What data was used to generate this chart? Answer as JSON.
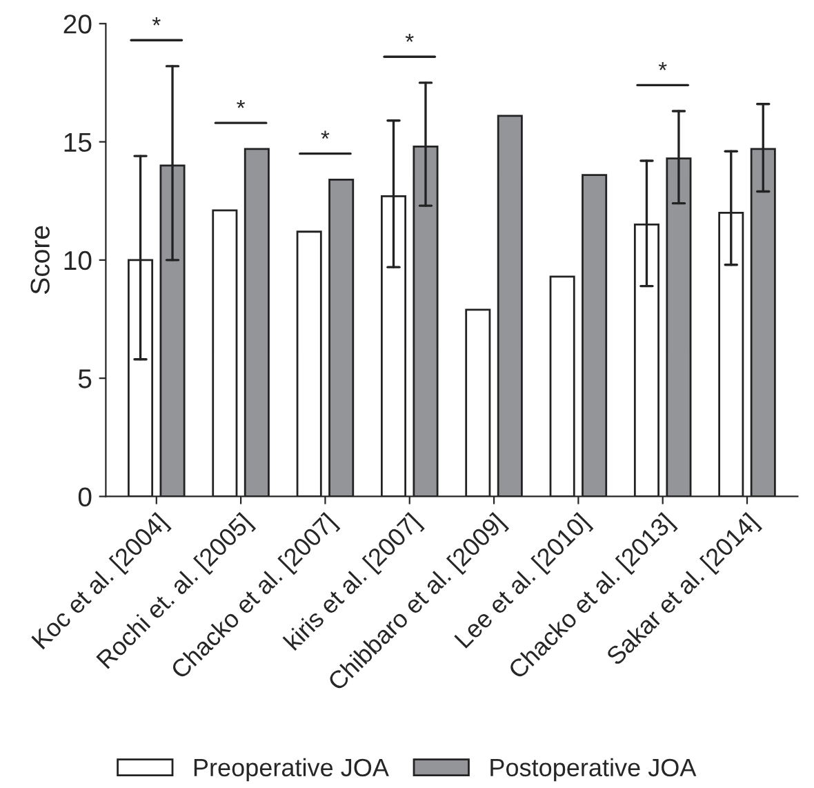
{
  "chart_data": {
    "type": "bar",
    "ylabel": "Score",
    "categories": [
      "Koc et al. [2004]",
      "Rochi et. al. [2005]",
      "Chacko et al. [2007]",
      "kiris et al. [2007]",
      "Chibbaro et al. [2009]",
      "Lee et al. [2010]",
      "Chacko et al. [2013]",
      "Sakar et al. [2014]"
    ],
    "series": [
      {
        "name": "Preoperative JOA",
        "color": "#ffffff",
        "values": [
          10.0,
          12.1,
          11.2,
          12.7,
          7.9,
          9.3,
          11.5,
          12.0
        ],
        "errors": [
          [
            5.8,
            14.4
          ],
          null,
          null,
          [
            9.7,
            15.9
          ],
          null,
          null,
          [
            8.9,
            14.2
          ],
          [
            9.8,
            14.6
          ]
        ]
      },
      {
        "name": "Postoperative JOA",
        "color": "#939598",
        "values": [
          14.0,
          14.7,
          13.4,
          14.8,
          16.1,
          13.6,
          14.3,
          14.7
        ],
        "errors": [
          [
            10.0,
            18.2
          ],
          null,
          null,
          [
            12.3,
            17.5
          ],
          null,
          null,
          [
            12.4,
            16.3
          ],
          [
            12.9,
            16.6
          ]
        ]
      }
    ],
    "annotations": [
      "*",
      "*",
      "*",
      "*",
      "*"
    ],
    "ylim": [
      0,
      20
    ],
    "yticks": [
      0,
      5,
      10,
      15,
      20
    ],
    "grid": false,
    "legend": "bottom"
  }
}
